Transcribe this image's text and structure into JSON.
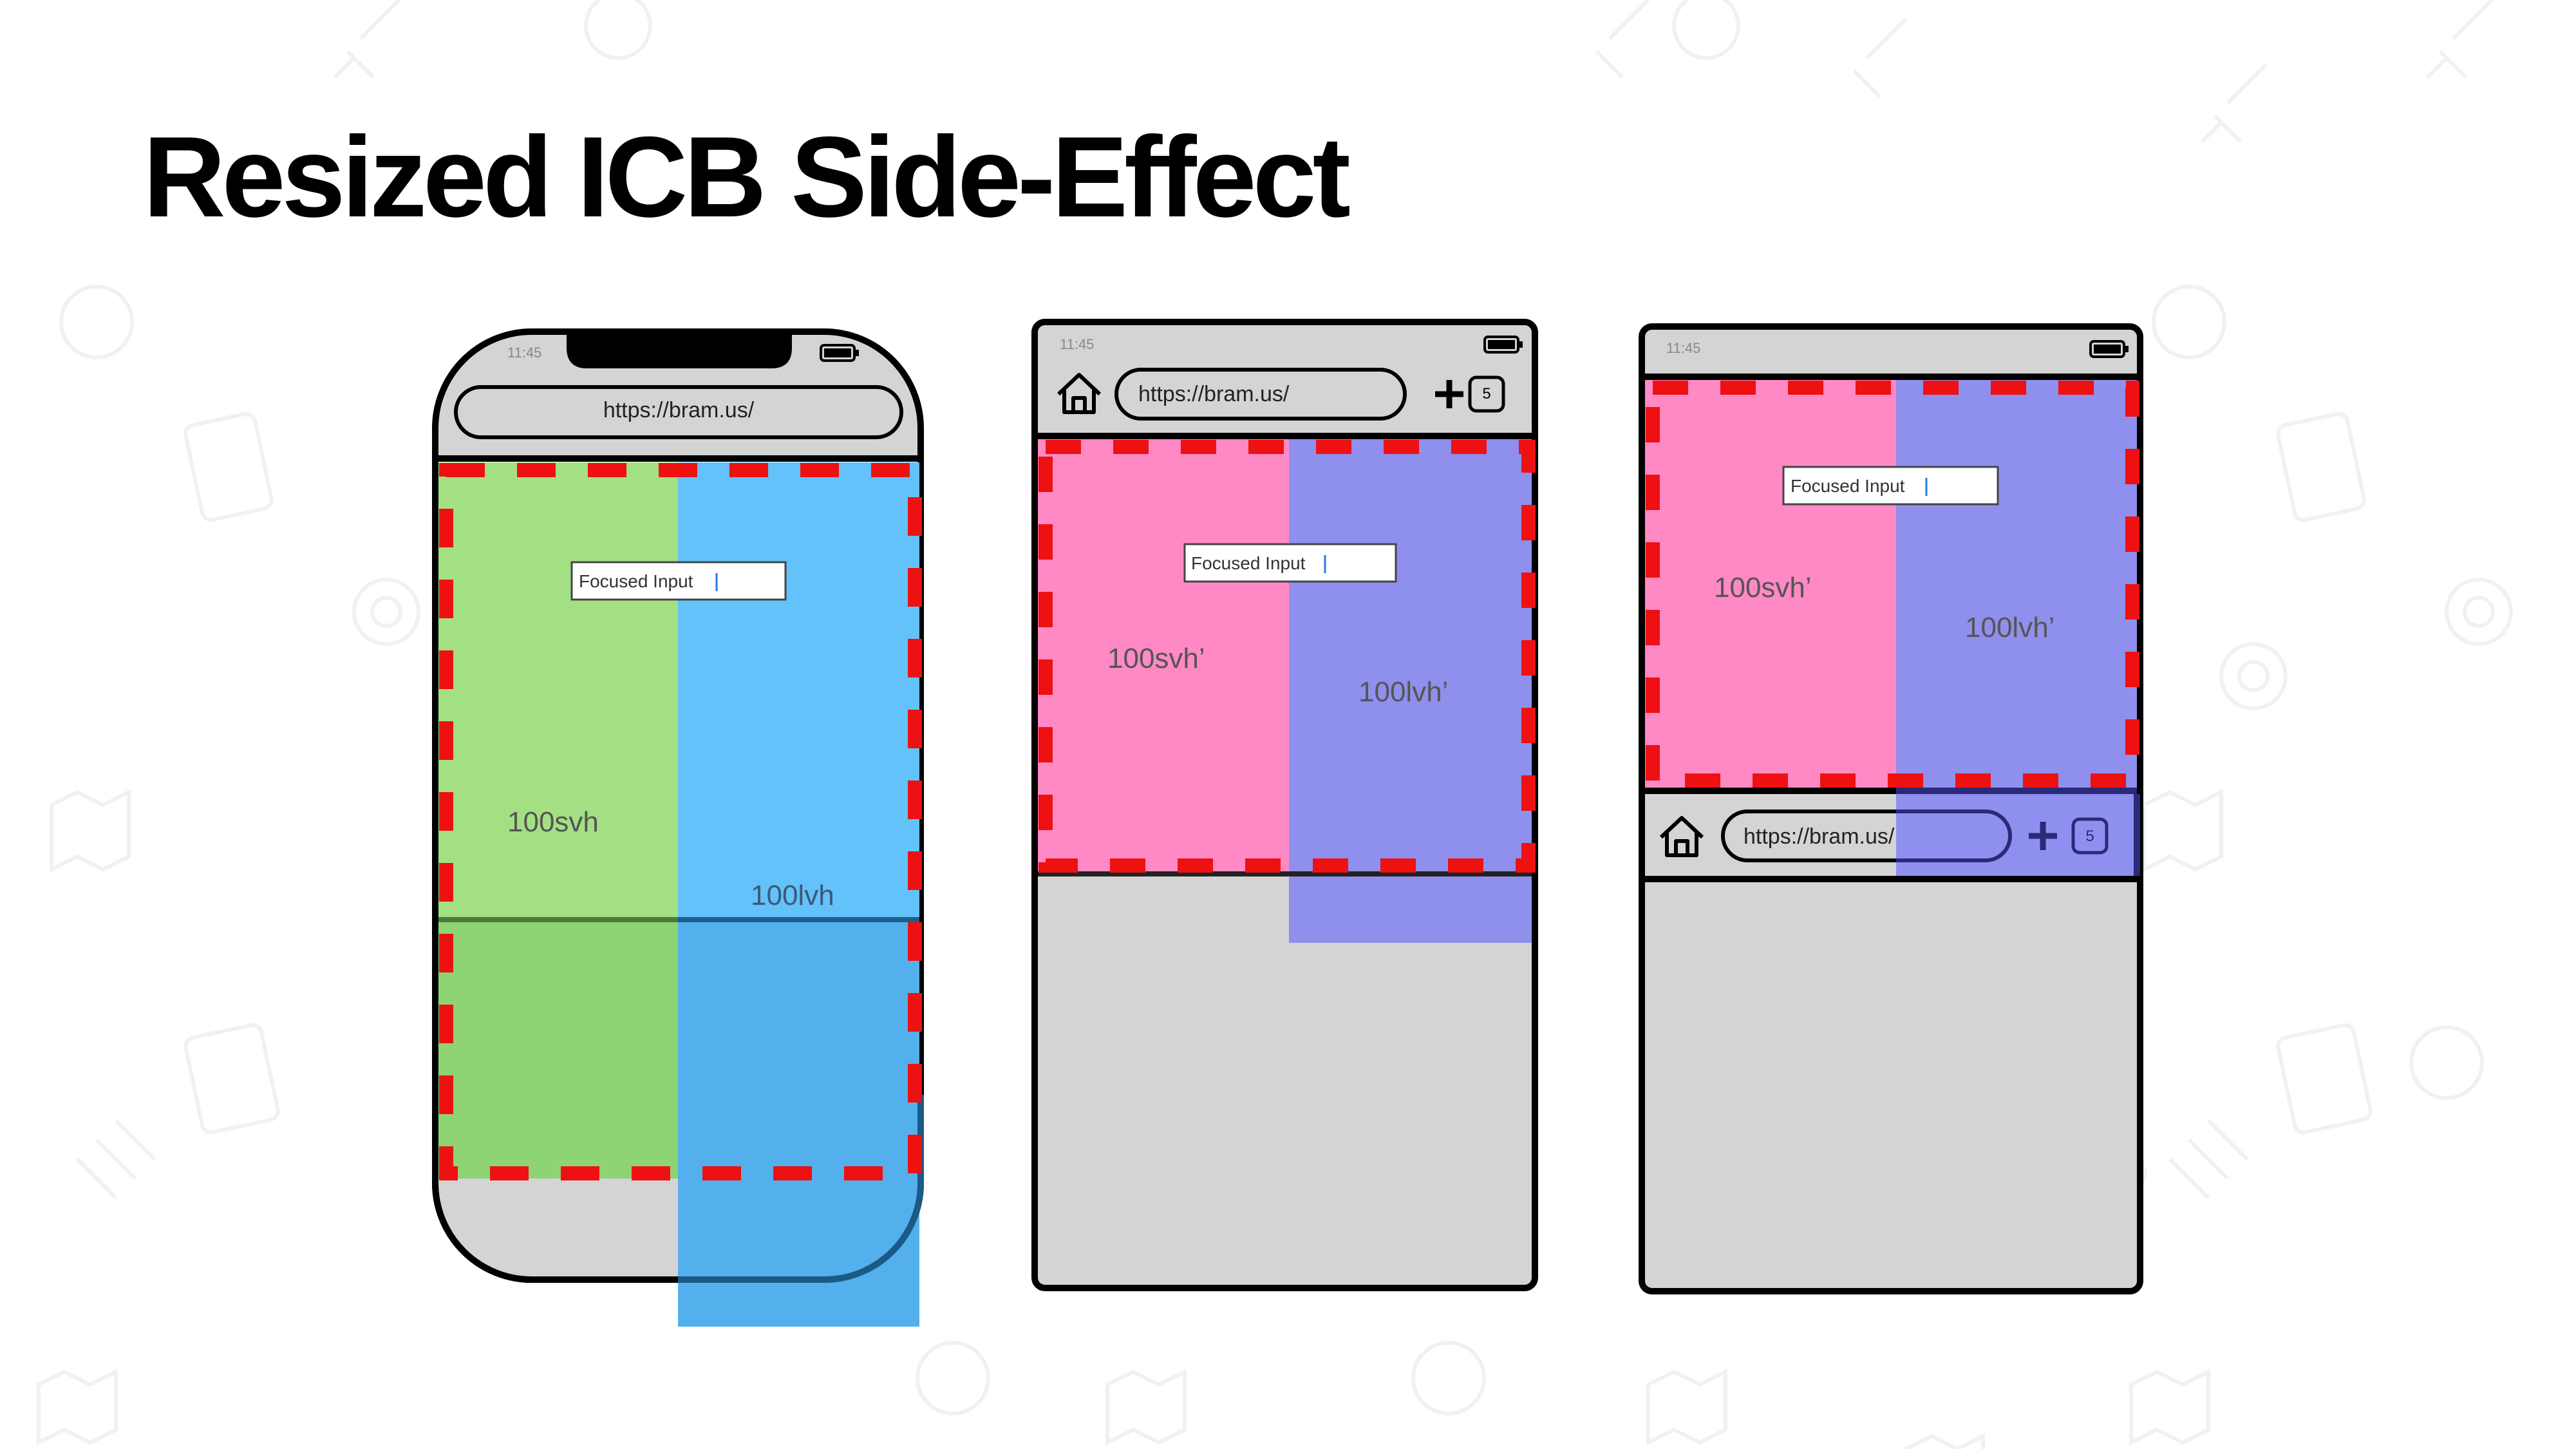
{
  "title": "Resized ICB Side-Effect",
  "colors": {
    "dashed_border": "#ee1111",
    "svh_green": "#a3e083",
    "lvh_blue": "#62c2f9",
    "svh_pink": "#ff89c4",
    "lvh_purple": "#8f8fee",
    "chrome_gray": "#d4d4d4"
  },
  "phone": {
    "time": "11:45",
    "url": "https://bram.us/",
    "input_text": "Focused Input",
    "svh_label": "100svh",
    "lvh_label": "100lvh"
  },
  "browser_top": {
    "time": "11:45",
    "url": "https://bram.us/",
    "tab_count": "5",
    "input_text": "Focused Input",
    "svh_label": "100svh’",
    "lvh_label": "100lvh’"
  },
  "browser_bottom": {
    "time": "11:45",
    "url": "https://bram.us/",
    "tab_count": "5",
    "input_text": "Focused Input",
    "svh_label": "100svh’",
    "lvh_label": "100lvh’"
  },
  "icons": {
    "home": "home-icon",
    "plus": "plus-icon",
    "tabs": "tab-count-icon",
    "battery": "battery-icon"
  }
}
